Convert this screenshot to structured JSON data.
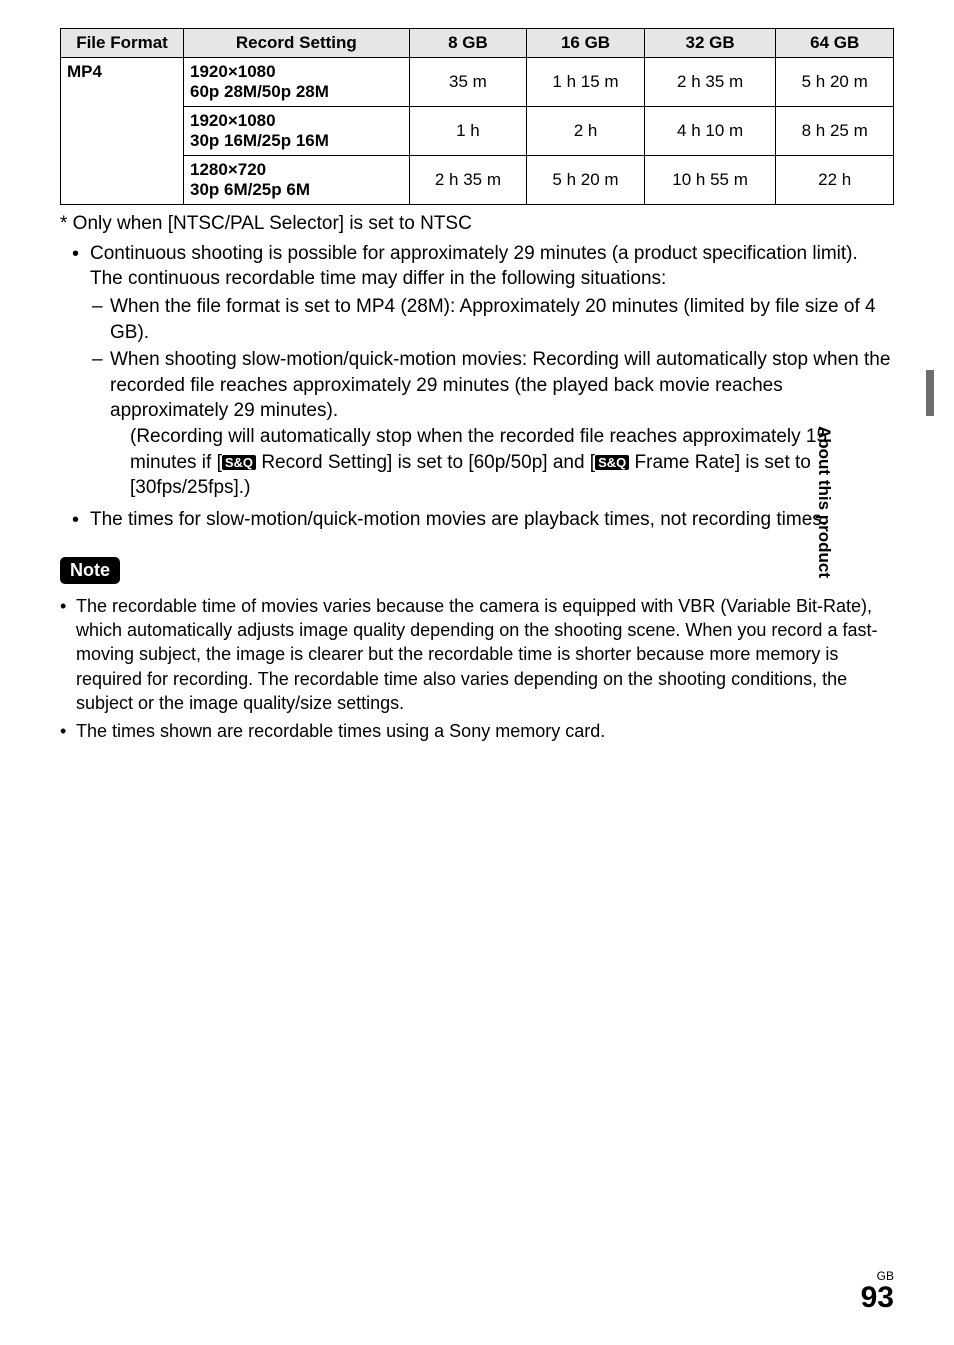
{
  "table": {
    "headers": [
      "File Format",
      "Record Setting",
      "8 GB",
      "16 GB",
      "32 GB",
      "64 GB"
    ],
    "file_format": "MP4",
    "rows": [
      {
        "setting": "1920×1080\n60p 28M/50p 28M",
        "c8": "35 m",
        "c16": "1 h 15 m",
        "c32": "2 h 35 m",
        "c64": "5 h 20 m"
      },
      {
        "setting": "1920×1080\n30p 16M/25p 16M",
        "c8": "1 h",
        "c16": "2 h",
        "c32": "4 h 10 m",
        "c64": "8 h 25 m"
      },
      {
        "setting": "1280×720\n30p 6M/25p 6M",
        "c8": "2 h 35 m",
        "c16": "5 h 20 m",
        "c32": "10 h 55 m",
        "c64": "22 h"
      }
    ]
  },
  "footnote": "*  Only when [NTSC/PAL Selector] is set to NTSC",
  "bullets": {
    "b1_a": "Continuous shooting is possible for approximately 29 minutes (a product specification limit). The continuous recordable time may differ in the following situations:",
    "b1_sub1": "When the file format is set to MP4 (28M): Approximately 20 minutes (limited by file size of 4 GB).",
    "b1_sub2": "When shooting slow-motion/quick-motion movies: Recording will automatically stop when the recorded file reaches approximately 29 minutes (the played back movie reaches approximately 29 minutes).",
    "b1_sub2_extra_pre1": "(Recording will automatically stop when the recorded file reaches approximately 15 minutes if [",
    "b1_sub2_extra_mid1": " Record Setting] is set to [60p/50p] and [",
    "b1_sub2_extra_post": " Frame Rate] is set to [30fps/25fps].)",
    "b2": "The times for slow-motion/quick-motion movies are playback times, not recording times."
  },
  "sq_icon": "S&Q",
  "note_label": "Note",
  "note": {
    "n1": "The recordable time of movies varies because the camera is equipped with VBR (Variable Bit-Rate), which automatically adjusts image quality depending on the shooting scene. When you record a fast-moving subject, the image is clearer but the recordable time is shorter because more memory is required for recording. The recordable time also varies depending on the shooting conditions, the subject or the image quality/size settings.",
    "n2": "The times shown are recordable times using a Sony memory card."
  },
  "side_label": "About this product",
  "footer_region": "GB",
  "page_number": "93"
}
